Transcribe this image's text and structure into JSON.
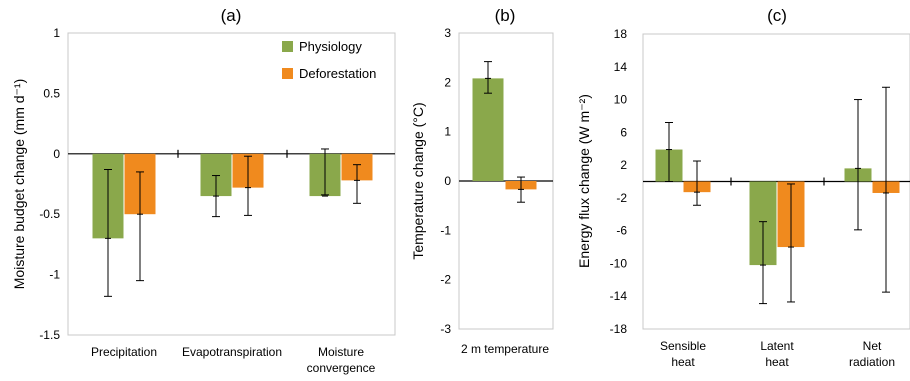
{
  "colors": {
    "physiology": "#8aa84b",
    "deforestation": "#f08a1e",
    "axis": "#000000",
    "frame": "#c8c8c8"
  },
  "chart_data": [
    {
      "type": "bar",
      "panel_label": "(a)",
      "ylabel": "Moisture budget change (mm d⁻¹)",
      "ylim": [
        -1.5,
        1
      ],
      "yticks": [
        "1",
        "0.5",
        "0",
        "-0.5",
        "-1",
        "-1.5"
      ],
      "ytick_values": [
        1,
        0.5,
        0,
        -0.5,
        -1,
        -1.5
      ],
      "categories": [
        "Precipitation",
        "Evapotranspiration",
        "Moisture convergence"
      ],
      "category_lines": [
        [
          "Precipitation"
        ],
        [
          "Evapotranspiration"
        ],
        [
          "Moisture",
          "convergence"
        ]
      ],
      "legend": {
        "position": "top-right",
        "entries": [
          "Physiology",
          "Deforestation"
        ]
      },
      "series": [
        {
          "name": "Physiology",
          "color_key": "physiology",
          "values": [
            -0.7,
            -0.35,
            -0.35
          ],
          "err_low": [
            -1.18,
            -0.52,
            -0.34
          ],
          "err_high": [
            -0.13,
            -0.18,
            0.04
          ]
        },
        {
          "name": "Deforestation",
          "color_key": "deforestation",
          "values": [
            -0.5,
            -0.28,
            -0.22
          ],
          "err_low": [
            -1.05,
            -0.51,
            -0.41
          ],
          "err_high": [
            -0.15,
            -0.02,
            -0.09
          ]
        }
      ]
    },
    {
      "type": "bar",
      "panel_label": "(b)",
      "ylabel": "Temperature change (°C)",
      "ylim": [
        -3,
        3
      ],
      "yticks": [
        "3",
        "2",
        "1",
        "0",
        "-1",
        "-2",
        "-3"
      ],
      "ytick_values": [
        3,
        2,
        1,
        0,
        -1,
        -2,
        -3
      ],
      "categories": [
        "2 m temperature"
      ],
      "category_lines": [
        [
          "2 m temperature"
        ]
      ],
      "series": [
        {
          "name": "Physiology",
          "color_key": "physiology",
          "values": [
            2.08
          ],
          "err_low": [
            1.78
          ],
          "err_high": [
            2.42
          ]
        },
        {
          "name": "Deforestation",
          "color_key": "deforestation",
          "values": [
            -0.17
          ],
          "err_low": [
            -0.43
          ],
          "err_high": [
            0.08
          ]
        }
      ]
    },
    {
      "type": "bar",
      "panel_label": "(c)",
      "ylabel": "Energy flux change (W m⁻²)",
      "ylim": [
        -18,
        18
      ],
      "yticks": [
        "18",
        "14",
        "10",
        "6",
        "2",
        "-2",
        "-6",
        "-10",
        "-14",
        "-18"
      ],
      "ytick_values": [
        18,
        14,
        10,
        6,
        2,
        -2,
        -6,
        -10,
        -14,
        -18
      ],
      "categories": [
        "Sensible heat",
        "Latent heat",
        "Net radiation"
      ],
      "category_lines": [
        [
          "Sensible",
          "heat"
        ],
        [
          "Latent",
          "heat"
        ],
        [
          "Net",
          "radiation"
        ]
      ],
      "series": [
        {
          "name": "Physiology",
          "color_key": "physiology",
          "values": [
            3.9,
            -10.2,
            1.6
          ],
          "err_low": [
            0.0,
            -14.9,
            -5.9
          ],
          "err_high": [
            7.2,
            -4.9,
            10.0
          ]
        },
        {
          "name": "Deforestation",
          "color_key": "deforestation",
          "values": [
            -1.3,
            -8.0,
            -1.4
          ],
          "err_low": [
            -2.9,
            -14.7,
            -13.5
          ],
          "err_high": [
            2.5,
            -0.3,
            11.5
          ]
        }
      ]
    }
  ]
}
